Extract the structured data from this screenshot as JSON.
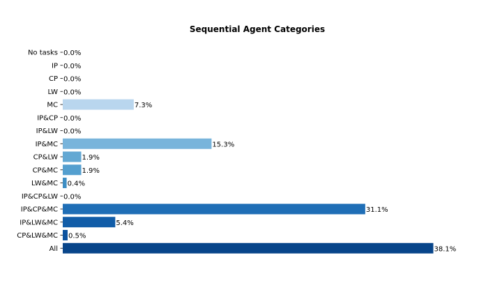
{
  "chart_data": {
    "type": "bar",
    "orientation": "horizontal",
    "title": "Sequential Agent Categories",
    "xlabel": "",
    "ylabel": "",
    "xlim": [
      0,
      40
    ],
    "grid": false,
    "legend": "none",
    "categories": [
      "No tasks",
      "IP",
      "CP",
      "LW",
      "MC",
      "IP&CP",
      "IP&LW",
      "IP&MC",
      "CP&LW",
      "CP&MC",
      "LW&MC",
      "IP&CP&LW",
      "IP&CP&MC",
      "IP&LW&MC",
      "CP&LW&MC",
      "All"
    ],
    "values": [
      0.0,
      0.0,
      0.0,
      0.0,
      7.3,
      0.0,
      0.0,
      15.3,
      1.9,
      1.9,
      0.4,
      0.0,
      31.1,
      5.4,
      0.5,
      38.1
    ],
    "value_labels": [
      "0.0%",
      "0.0%",
      "0.0%",
      "0.0%",
      "7.3%",
      "0.0%",
      "0.0%",
      "15.3%",
      "1.9%",
      "1.9%",
      "0.4%",
      "0.0%",
      "31.1%",
      "5.4%",
      "0.5%",
      "38.1%"
    ],
    "colors": [
      "#f7fbff",
      "#f7fbff",
      "#f7fbff",
      "#f7fbff",
      "#b9d6ee",
      "#f7fbff",
      "#f7fbff",
      "#78b4db",
      "#63a8d3",
      "#549fcf",
      "#3e8ec4",
      "#f7fbff",
      "#1f6eb6",
      "#125da8",
      "#0c529f",
      "#08458a"
    ]
  }
}
